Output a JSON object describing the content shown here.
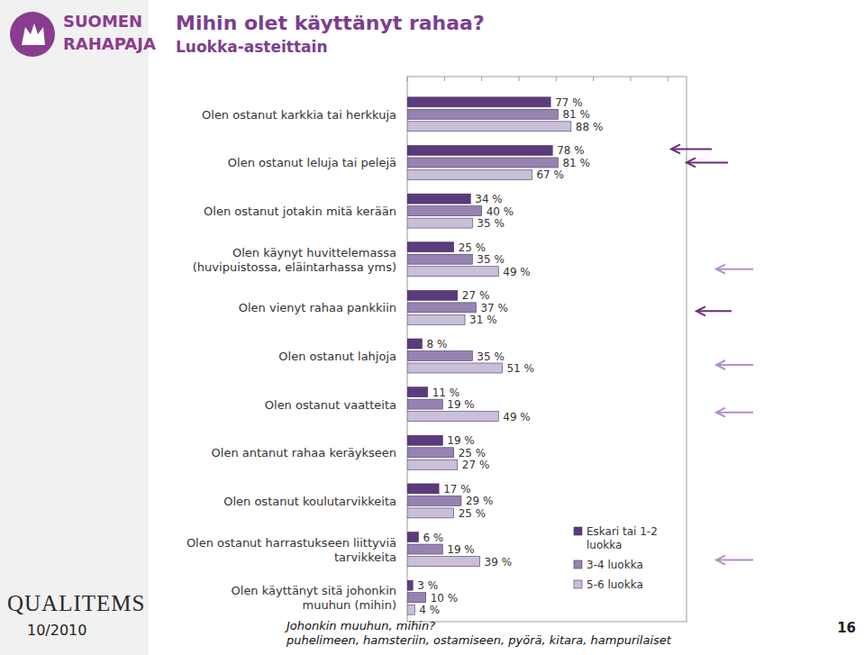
{
  "page": {
    "logo_top": [
      "SUOMEN",
      "RAHAPAJA"
    ],
    "logo_bottom": "QUALITEMS",
    "date": "10/2010",
    "page_number": "16"
  },
  "chart_data": {
    "type": "bar",
    "orientation": "horizontal",
    "title": "Mihin olet käyttänyt rahaa?",
    "subtitle": "Luokka-asteittain",
    "categories": [
      "Olen ostanut karkkia tai herkkuja",
      "Olen ostanut leluja tai pelejä",
      "Olen ostanut jotakin mitä kerään",
      "Olen käynyt huvittelemassa\n(huvipuistossa, eläintarhassa yms)",
      "Olen vienyt rahaa pankkiin",
      "Olen ostanut lahjoja",
      "Olen ostanut vaatteita",
      "Olen antanut rahaa keräykseen",
      "Olen ostanut koulutarvikkeita",
      "Olen ostanut harrastukseen liittyviä\ntarvikkeita",
      "Olen käyttänyt sitä johonkin\nmuuhun (mihin)"
    ],
    "series": [
      {
        "name": "Eskari tai 1-2\nluokka",
        "color": "#5b3b7d",
        "values": [
          77,
          78,
          34,
          25,
          27,
          8,
          11,
          19,
          17,
          6,
          3
        ],
        "value_labels": [
          "77 %",
          "78 %",
          "34 %",
          "25 %",
          "27 %",
          "8 %",
          "11 %",
          "19 %",
          "17 %",
          "6 %",
          "3 %"
        ]
      },
      {
        "name": "3-4 luokka",
        "color": "#9683b0",
        "values": [
          81,
          81,
          40,
          35,
          37,
          35,
          19,
          25,
          29,
          19,
          10
        ],
        "value_labels": [
          "81 %",
          "81 %",
          "40 %",
          "35 %",
          "37 %",
          "35 %",
          "19 %",
          "25 %",
          "29 %",
          "19 %",
          "10 %"
        ]
      },
      {
        "name": "5-6 luokka",
        "color": "#c9bfd9",
        "values": [
          88,
          67,
          35,
          49,
          31,
          51,
          49,
          27,
          25,
          39,
          4
        ],
        "value_labels": [
          "88 %",
          "67 %",
          "35 %",
          "49 %",
          "31 %",
          "51 %",
          "49 %",
          "27 %",
          "25 %",
          "39 %",
          "4 %"
        ]
      }
    ],
    "xlim": [
      0,
      150
    ],
    "xticks": [
      0,
      20,
      40,
      60,
      80,
      100,
      120,
      140
    ],
    "grid": false,
    "tick_labels": false,
    "data_labels": true,
    "legend": "right",
    "annotations": [
      "Johonkin muuhun, mihin?",
      "puhelimeen, hamsteriin, ostamiseen, pyörä, kitara, hampurilaiset"
    ]
  }
}
